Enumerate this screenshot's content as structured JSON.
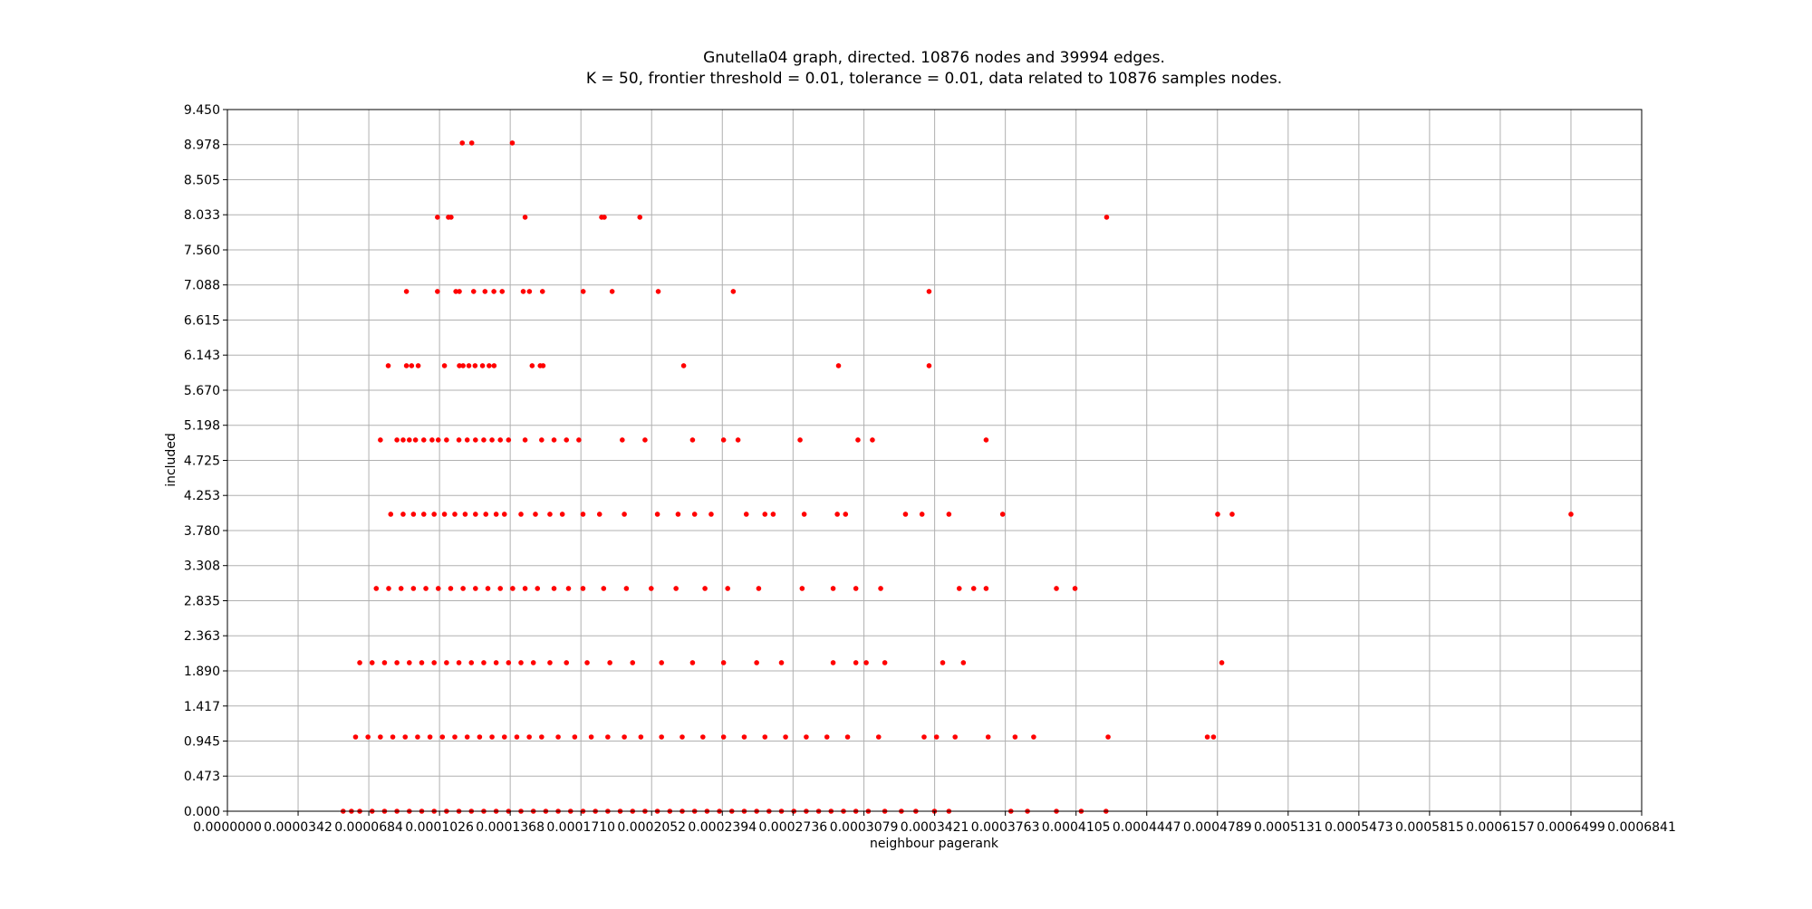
{
  "chart_data": {
    "type": "scatter",
    "title": "Gnutella04 graph, directed. 10876 nodes and 39994 edges.",
    "subtitle": "K = 50, frontier threshold = 0.01, tolerance = 0.01, data related to 10876 samples nodes.",
    "xlabel": "neighbour pagerank",
    "ylabel": "included",
    "xlim": [
      0,
      0.0006841
    ],
    "ylim": [
      0,
      9.45
    ],
    "xticks": [
      "0.0000000",
      "0.0000342",
      "0.0000684",
      "0.0001026",
      "0.0001368",
      "0.0001710",
      "0.0002052",
      "0.0002394",
      "0.0002736",
      "0.0003079",
      "0.0003421",
      "0.0003763",
      "0.0004105",
      "0.0004447",
      "0.0004789",
      "0.0005131",
      "0.0005473",
      "0.0005815",
      "0.0006157",
      "0.0006499",
      "0.0006841"
    ],
    "yticks": [
      "0.000",
      "0.473",
      "0.945",
      "1.417",
      "1.890",
      "2.363",
      "2.835",
      "3.308",
      "3.780",
      "4.253",
      "4.725",
      "5.198",
      "5.670",
      "6.143",
      "6.615",
      "7.088",
      "7.560",
      "8.033",
      "8.505",
      "8.978",
      "9.450"
    ],
    "grid": true,
    "marker_color": "#ff0000",
    "series": [
      {
        "name": "",
        "points": [
          [
            0.0001136,
            9
          ],
          [
            0.0001182,
            9
          ],
          [
            0.0001378,
            9
          ],
          [
            0.0001016,
            8
          ],
          [
            0.0001069,
            8
          ],
          [
            0.0001082,
            8
          ],
          [
            0.000144,
            8
          ],
          [
            0.000181,
            8
          ],
          [
            0.0001823,
            8
          ],
          [
            0.0001995,
            8
          ],
          [
            0.0004253,
            8
          ],
          [
            8.66e-05,
            7
          ],
          [
            0.0001016,
            7
          ],
          [
            0.0001105,
            7
          ],
          [
            0.0001122,
            7
          ],
          [
            0.0001191,
            7
          ],
          [
            0.0001246,
            7
          ],
          [
            0.0001289,
            7
          ],
          [
            0.0001329,
            7
          ],
          [
            0.0001431,
            7
          ],
          [
            0.0001461,
            7
          ],
          [
            0.0001524,
            7
          ],
          [
            0.0001721,
            7
          ],
          [
            0.0001861,
            7
          ],
          [
            0.0002084,
            7
          ],
          [
            0.0002447,
            7
          ],
          [
            0.0003394,
            7
          ],
          [
            7.78e-05,
            6
          ],
          [
            8.66e-05,
            6
          ],
          [
            8.91e-05,
            6
          ],
          [
            9.23e-05,
            6
          ],
          [
            0.000105,
            6
          ],
          [
            0.0001122,
            6
          ],
          [
            0.000114,
            6
          ],
          [
            0.0001168,
            6
          ],
          [
            0.0001198,
            6
          ],
          [
            0.0001234,
            6
          ],
          [
            0.0001266,
            6
          ],
          [
            0.000129,
            6
          ],
          [
            0.0001474,
            6
          ],
          [
            0.0001513,
            6
          ],
          [
            0.0001527,
            6
          ],
          [
            0.0002207,
            6
          ],
          [
            0.0002956,
            6
          ],
          [
            0.0003394,
            6
          ],
          [
            7.4e-05,
            5
          ],
          [
            8.2e-05,
            5
          ],
          [
            8.5e-05,
            5
          ],
          [
            8.8e-05,
            5
          ],
          [
            9.1e-05,
            5
          ],
          [
            9.5e-05,
            5
          ],
          [
            9.9e-05,
            5
          ],
          [
            0.000102,
            5
          ],
          [
            0.000106,
            5
          ],
          [
            0.000112,
            5
          ],
          [
            0.000116,
            5
          ],
          [
            0.00012,
            5
          ],
          [
            0.000124,
            5
          ],
          [
            0.000128,
            5
          ],
          [
            0.000132,
            5
          ],
          [
            0.000136,
            5
          ],
          [
            0.000144,
            5
          ],
          [
            0.000152,
            5
          ],
          [
            0.000158,
            5
          ],
          [
            0.000164,
            5
          ],
          [
            0.00017,
            5
          ],
          [
            0.000191,
            5
          ],
          [
            0.000202,
            5
          ],
          [
            0.000225,
            5
          ],
          [
            0.00024,
            5
          ],
          [
            0.000247,
            5
          ],
          [
            0.000277,
            5
          ],
          [
            0.000305,
            5
          ],
          [
            0.000312,
            5
          ],
          [
            0.000367,
            5
          ],
          [
            7.9e-05,
            4
          ],
          [
            8.5e-05,
            4
          ],
          [
            9e-05,
            4
          ],
          [
            9.5e-05,
            4
          ],
          [
            0.0001,
            4
          ],
          [
            0.000105,
            4
          ],
          [
            0.00011,
            4
          ],
          [
            0.000115,
            4
          ],
          [
            0.00012,
            4
          ],
          [
            0.000125,
            4
          ],
          [
            0.00013,
            4
          ],
          [
            0.000134,
            4
          ],
          [
            0.000142,
            4
          ],
          [
            0.000149,
            4
          ],
          [
            0.000156,
            4
          ],
          [
            0.000162,
            4
          ],
          [
            0.000172,
            4
          ],
          [
            0.00018,
            4
          ],
          [
            0.000192,
            4
          ],
          [
            0.000208,
            4
          ],
          [
            0.000218,
            4
          ],
          [
            0.000226,
            4
          ],
          [
            0.000234,
            4
          ],
          [
            0.000251,
            4
          ],
          [
            0.00026,
            4
          ],
          [
            0.000264,
            4
          ],
          [
            0.000279,
            4
          ],
          [
            0.000295,
            4
          ],
          [
            0.000299,
            4
          ],
          [
            0.000328,
            4
          ],
          [
            0.000336,
            4
          ],
          [
            0.000349,
            4
          ],
          [
            0.000375,
            4
          ],
          [
            0.000479,
            4
          ],
          [
            0.000486,
            4
          ],
          [
            0.0006499,
            4
          ],
          [
            7.2e-05,
            3
          ],
          [
            7.8e-05,
            3
          ],
          [
            8.4e-05,
            3
          ],
          [
            9e-05,
            3
          ],
          [
            9.6e-05,
            3
          ],
          [
            0.000102,
            3
          ],
          [
            0.000108,
            3
          ],
          [
            0.000114,
            3
          ],
          [
            0.00012,
            3
          ],
          [
            0.000126,
            3
          ],
          [
            0.000132,
            3
          ],
          [
            0.000138,
            3
          ],
          [
            0.000144,
            3
          ],
          [
            0.00015,
            3
          ],
          [
            0.000158,
            3
          ],
          [
            0.000165,
            3
          ],
          [
            0.000172,
            3
          ],
          [
            0.000182,
            3
          ],
          [
            0.000193,
            3
          ],
          [
            0.000205,
            3
          ],
          [
            0.000217,
            3
          ],
          [
            0.000231,
            3
          ],
          [
            0.000242,
            3
          ],
          [
            0.000257,
            3
          ],
          [
            0.000278,
            3
          ],
          [
            0.000293,
            3
          ],
          [
            0.000304,
            3
          ],
          [
            0.000316,
            3
          ],
          [
            0.000354,
            3
          ],
          [
            0.000361,
            3
          ],
          [
            0.000367,
            3
          ],
          [
            0.000401,
            3
          ],
          [
            0.00041,
            3
          ],
          [
            6.4e-05,
            2
          ],
          [
            7e-05,
            2
          ],
          [
            7.6e-05,
            2
          ],
          [
            8.2e-05,
            2
          ],
          [
            8.8e-05,
            2
          ],
          [
            9.4e-05,
            2
          ],
          [
            0.0001,
            2
          ],
          [
            0.000106,
            2
          ],
          [
            0.000112,
            2
          ],
          [
            0.000118,
            2
          ],
          [
            0.000124,
            2
          ],
          [
            0.00013,
            2
          ],
          [
            0.000136,
            2
          ],
          [
            0.000142,
            2
          ],
          [
            0.000148,
            2
          ],
          [
            0.000156,
            2
          ],
          [
            0.000164,
            2
          ],
          [
            0.000174,
            2
          ],
          [
            0.000185,
            2
          ],
          [
            0.000196,
            2
          ],
          [
            0.00021,
            2
          ],
          [
            0.000225,
            2
          ],
          [
            0.00024,
            2
          ],
          [
            0.000256,
            2
          ],
          [
            0.000268,
            2
          ],
          [
            0.000293,
            2
          ],
          [
            0.000304,
            2
          ],
          [
            0.000309,
            2
          ],
          [
            0.000318,
            2
          ],
          [
            0.000346,
            2
          ],
          [
            0.000356,
            2
          ],
          [
            0.000481,
            2
          ],
          [
            6.2e-05,
            1
          ],
          [
            6.8e-05,
            1
          ],
          [
            7.4e-05,
            1
          ],
          [
            8e-05,
            1
          ],
          [
            8.6e-05,
            1
          ],
          [
            9.2e-05,
            1
          ],
          [
            9.8e-05,
            1
          ],
          [
            0.000104,
            1
          ],
          [
            0.00011,
            1
          ],
          [
            0.000116,
            1
          ],
          [
            0.000122,
            1
          ],
          [
            0.000128,
            1
          ],
          [
            0.000134,
            1
          ],
          [
            0.00014,
            1
          ],
          [
            0.000146,
            1
          ],
          [
            0.000152,
            1
          ],
          [
            0.00016,
            1
          ],
          [
            0.000168,
            1
          ],
          [
            0.000176,
            1
          ],
          [
            0.000184,
            1
          ],
          [
            0.000192,
            1
          ],
          [
            0.0002,
            1
          ],
          [
            0.00021,
            1
          ],
          [
            0.00022,
            1
          ],
          [
            0.00023,
            1
          ],
          [
            0.00024,
            1
          ],
          [
            0.00025,
            1
          ],
          [
            0.00026,
            1
          ],
          [
            0.00027,
            1
          ],
          [
            0.00028,
            1
          ],
          [
            0.00029,
            1
          ],
          [
            0.0003,
            1
          ],
          [
            0.000315,
            1
          ],
          [
            0.000337,
            1
          ],
          [
            0.000343,
            1
          ],
          [
            0.000352,
            1
          ],
          [
            0.000368,
            1
          ],
          [
            0.000381,
            1
          ],
          [
            0.00039,
            1
          ],
          [
            0.000426,
            1
          ],
          [
            0.000474,
            1
          ],
          [
            0.000477,
            1
          ],
          [
            5.6e-05,
            0
          ],
          [
            6e-05,
            0
          ],
          [
            6.4e-05,
            0
          ],
          [
            7e-05,
            0
          ],
          [
            7.6e-05,
            0
          ],
          [
            8.2e-05,
            0
          ],
          [
            8.8e-05,
            0
          ],
          [
            9.4e-05,
            0
          ],
          [
            0.0001,
            0
          ],
          [
            0.000106,
            0
          ],
          [
            0.000112,
            0
          ],
          [
            0.000118,
            0
          ],
          [
            0.000124,
            0
          ],
          [
            0.00013,
            0
          ],
          [
            0.000136,
            0
          ],
          [
            0.000142,
            0
          ],
          [
            0.000148,
            0
          ],
          [
            0.000154,
            0
          ],
          [
            0.00016,
            0
          ],
          [
            0.000166,
            0
          ],
          [
            0.000172,
            0
          ],
          [
            0.000178,
            0
          ],
          [
            0.000184,
            0
          ],
          [
            0.00019,
            0
          ],
          [
            0.000196,
            0
          ],
          [
            0.000202,
            0
          ],
          [
            0.000208,
            0
          ],
          [
            0.000214,
            0
          ],
          [
            0.00022,
            0
          ],
          [
            0.000226,
            0
          ],
          [
            0.000232,
            0
          ],
          [
            0.000238,
            0
          ],
          [
            0.000244,
            0
          ],
          [
            0.00025,
            0
          ],
          [
            0.000256,
            0
          ],
          [
            0.000262,
            0
          ],
          [
            0.000268,
            0
          ],
          [
            0.000274,
            0
          ],
          [
            0.00028,
            0
          ],
          [
            0.000286,
            0
          ],
          [
            0.000292,
            0
          ],
          [
            0.000298,
            0
          ],
          [
            0.000304,
            0
          ],
          [
            0.00031,
            0
          ],
          [
            0.000318,
            0
          ],
          [
            0.000326,
            0
          ],
          [
            0.000333,
            0
          ],
          [
            0.000342,
            0
          ],
          [
            0.000349,
            0
          ],
          [
            0.000379,
            0
          ],
          [
            0.000387,
            0
          ],
          [
            0.000401,
            0
          ],
          [
            0.000413,
            0
          ],
          [
            0.000425,
            0
          ]
        ]
      }
    ]
  }
}
